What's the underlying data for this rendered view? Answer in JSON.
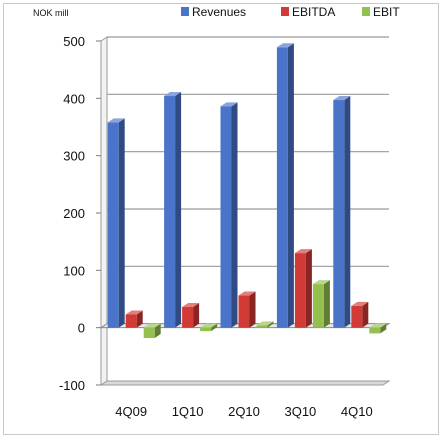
{
  "chart_data": {
    "type": "bar",
    "title": "",
    "unit_label": "NOK mill",
    "xlabel": "",
    "ylabel": "",
    "categories": [
      "4Q09",
      "1Q10",
      "2Q10",
      "3Q10",
      "4Q10"
    ],
    "series": [
      {
        "name": "Revenues",
        "color": "#4a74c9",
        "values": [
          358,
          404,
          386,
          489,
          397
        ]
      },
      {
        "name": "EBITDA",
        "color": "#d23a36",
        "values": [
          23,
          36,
          56,
          130,
          38
        ]
      },
      {
        "name": "EBIT",
        "color": "#93c04f",
        "values": [
          -18,
          -6,
          4,
          76,
          -10
        ]
      }
    ],
    "ylim": [
      -100,
      500
    ],
    "yticks": [
      -100,
      0,
      100,
      200,
      300,
      400,
      500
    ],
    "grid": true,
    "legend": "top"
  }
}
